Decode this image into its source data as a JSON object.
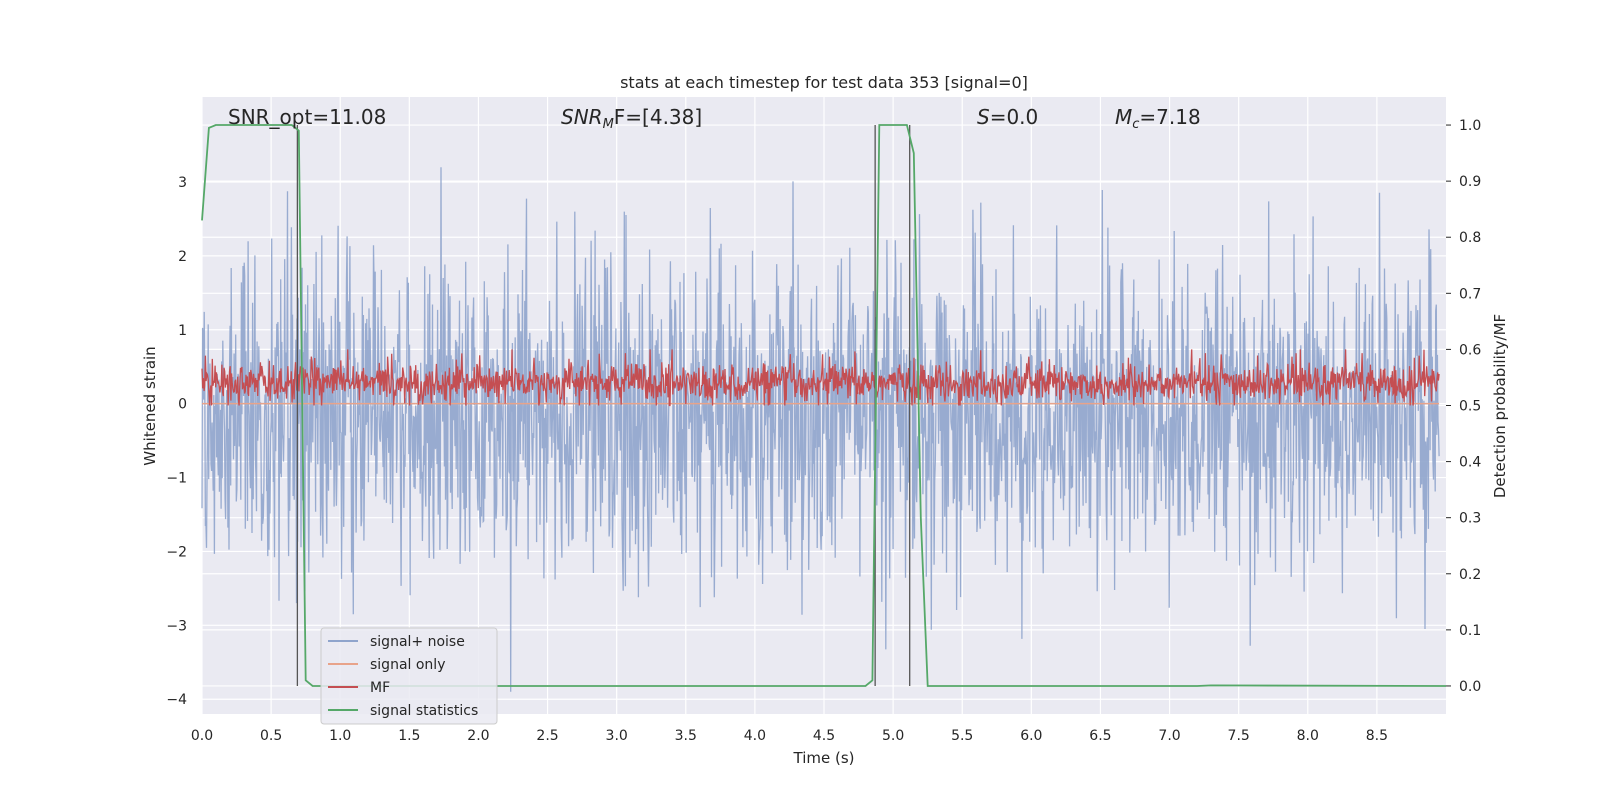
{
  "chart_data": {
    "type": "line",
    "title": "stats at each timestep for test data 353 [signal=0]",
    "xlabel": "Time (s)",
    "ylabel": "Whitened strain",
    "ylabel_right": "Detection probability/MF",
    "xlim": [
      0,
      9.0
    ],
    "ylim": [
      -4.2,
      4.15
    ],
    "ylim_right": [
      -0.05,
      1.05
    ],
    "x_ticks": [
      "0.0",
      "0.5",
      "1.0",
      "1.5",
      "2.0",
      "2.5",
      "3.0",
      "3.5",
      "4.0",
      "4.5",
      "5.0",
      "5.5",
      "6.0",
      "6.5",
      "7.0",
      "7.5",
      "8.0",
      "8.5"
    ],
    "y_ticks_left": [
      "−4",
      "−3",
      "−2",
      "−1",
      "0",
      "1",
      "2",
      "3"
    ],
    "y_ticks_right": [
      "0.0",
      "0.1",
      "0.2",
      "0.3",
      "0.4",
      "0.5",
      "0.6",
      "0.7",
      "0.8",
      "0.9",
      "1.0"
    ],
    "annotations": {
      "snr_opt": "SNR_opt=11.08",
      "snr_mf_sym": "SNR",
      "snr_mf_sub": "M",
      "snr_mf_rest": "F=[4.38]",
      "s_sym": "S",
      "s_rest": "=0.0",
      "mc_sym": "M",
      "mc_sub": "c",
      "mc_rest": "=7.18"
    },
    "legend_position": "lower-left",
    "grid": true,
    "series": [
      {
        "name": "signal+ noise",
        "color": "#8fa4cc",
        "axis": "left",
        "mean": -0.15,
        "amplitude_range": [
          -3.9,
          3.2
        ]
      },
      {
        "name": "signal only",
        "color": "#e8a38a",
        "axis": "left",
        "values_constant": 0.0
      },
      {
        "name": "MF",
        "color": "#c44e52",
        "axis": "right",
        "mean": 0.54,
        "amplitude_range": [
          0.5,
          0.6
        ]
      },
      {
        "name": "signal statistics",
        "color": "#55a868",
        "axis": "right",
        "x": [
          0.0,
          0.05,
          0.1,
          0.65,
          0.7,
          0.75,
          0.8,
          1.0,
          4.8,
          4.85,
          4.9,
          5.1,
          5.15,
          5.2,
          5.25,
          7.2,
          7.3,
          9.0
        ],
        "y": [
          0.83,
          0.995,
          1.0,
          1.0,
          0.99,
          0.01,
          0.0,
          0.0,
          0.0,
          0.01,
          1.0,
          1.0,
          0.95,
          0.3,
          0.0,
          0.0,
          0.001,
          0.0
        ]
      }
    ],
    "vertical_lines": [
      0.69,
      4.87,
      5.12
    ]
  }
}
